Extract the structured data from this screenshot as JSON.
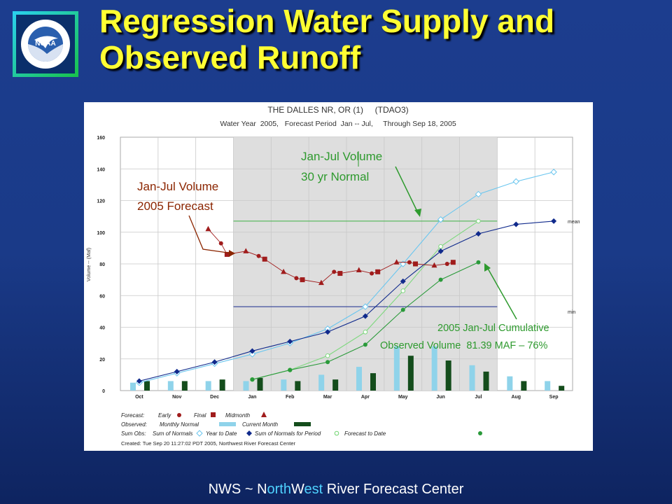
{
  "slide": {
    "title": "Regression Water Supply and Observed Runoff",
    "logo_text": "NOAA",
    "footer": {
      "pre": "NWS ~ ",
      "n": "N",
      "orth": "orth",
      "w": "W",
      "est": "est ",
      "rest": "River Forecast Center"
    }
  },
  "annotations": {
    "forecast": {
      "line1": "Jan-Jul Volume",
      "line2": "2005 Forecast",
      "color": "#8b2500"
    },
    "normal": {
      "line1": "Jan-Jul Volume",
      "line2": "30 yr Normal",
      "color": "#2e9a2e"
    },
    "observed": {
      "line1": "2005 Jan-Jul Cumulative",
      "line2": "Observed Volume  81.39 MAF – 76%",
      "color": "#2e9a2e"
    }
  },
  "chart_data": {
    "type": "line",
    "title": "THE DALLES NR, OR (1)     (TDAO3)",
    "subtitle": "Water Year  2005,   Forecast Period  Jan -- Jul,     Through Sep 18, 2005",
    "ylabel": "Volume -- (Maf)",
    "ylim": [
      0,
      160
    ],
    "yticks": [
      "0",
      "20",
      "40",
      "60",
      "80",
      "100",
      "120",
      "140",
      "160"
    ],
    "months": [
      "Oct",
      "Nov",
      "Dec",
      "Jan",
      "Feb",
      "Mar",
      "Apr",
      "May",
      "Jun",
      "Jul",
      "Aug",
      "Sep"
    ],
    "forecast_period": [
      3,
      10
    ],
    "mean_line": {
      "label": "mean",
      "value": 107
    },
    "min_line": {
      "label": "min",
      "value": 53
    },
    "series": {
      "sum_normals": [
        [
          0.5,
          5
        ],
        [
          1.5,
          11
        ],
        [
          2.5,
          17
        ],
        [
          3.5,
          23
        ],
        [
          4.5,
          30
        ],
        [
          5.5,
          39
        ],
        [
          6.5,
          53
        ],
        [
          7.5,
          80
        ],
        [
          8.5,
          108
        ],
        [
          9.5,
          124
        ],
        [
          10.5,
          132
        ],
        [
          11.5,
          138
        ]
      ],
      "year_to_date": [
        [
          0.5,
          6
        ],
        [
          1.5,
          12
        ],
        [
          2.5,
          18
        ],
        [
          3.5,
          25
        ],
        [
          4.5,
          31
        ],
        [
          5.5,
          37
        ],
        [
          6.5,
          47
        ],
        [
          7.5,
          69
        ],
        [
          8.5,
          88
        ],
        [
          9.5,
          99
        ],
        [
          10.5,
          105
        ],
        [
          11.5,
          107
        ]
      ],
      "normals_for_period": [
        [
          3.5,
          7
        ],
        [
          4.5,
          13
        ],
        [
          5.5,
          22
        ],
        [
          6.5,
          37
        ],
        [
          7.5,
          63
        ],
        [
          8.5,
          91
        ],
        [
          9.5,
          107
        ]
      ],
      "forecast_to_date": [
        [
          3.5,
          7
        ],
        [
          4.5,
          13
        ],
        [
          5.5,
          18
        ],
        [
          6.5,
          29
        ],
        [
          7.5,
          51
        ],
        [
          8.5,
          70
        ],
        [
          9.5,
          81
        ]
      ],
      "forecast": [
        {
          "x": 2.33,
          "y": 102,
          "m": "mid"
        },
        {
          "x": 2.67,
          "y": 93,
          "m": "early"
        },
        {
          "x": 2.83,
          "y": 86,
          "m": "final"
        },
        {
          "x": 3.33,
          "y": 88,
          "m": "mid"
        },
        {
          "x": 3.67,
          "y": 85,
          "m": "early"
        },
        {
          "x": 3.83,
          "y": 83,
          "m": "final"
        },
        {
          "x": 4.33,
          "y": 75,
          "m": "mid"
        },
        {
          "x": 4.67,
          "y": 71,
          "m": "early"
        },
        {
          "x": 4.83,
          "y": 70,
          "m": "final"
        },
        {
          "x": 5.33,
          "y": 68,
          "m": "mid"
        },
        {
          "x": 5.67,
          "y": 75,
          "m": "early"
        },
        {
          "x": 5.83,
          "y": 74,
          "m": "final"
        },
        {
          "x": 6.33,
          "y": 76,
          "m": "mid"
        },
        {
          "x": 6.67,
          "y": 74,
          "m": "early"
        },
        {
          "x": 6.83,
          "y": 75,
          "m": "final"
        },
        {
          "x": 7.33,
          "y": 81,
          "m": "mid"
        },
        {
          "x": 7.67,
          "y": 81,
          "m": "early"
        },
        {
          "x": 7.83,
          "y": 80,
          "m": "final"
        },
        {
          "x": 8.33,
          "y": 79,
          "m": "mid"
        },
        {
          "x": 8.67,
          "y": 80,
          "m": "early"
        },
        {
          "x": 8.83,
          "y": 81,
          "m": "final"
        }
      ],
      "monthly_normal": [
        5,
        6,
        6,
        6,
        7,
        10,
        15,
        28,
        28,
        16,
        9,
        6
      ],
      "current_month": [
        6,
        6,
        7,
        8,
        6,
        7,
        11,
        22,
        19,
        12,
        6,
        3
      ]
    },
    "legend": {
      "r1": {
        "label": "Forecast:",
        "early": "Early",
        "final": "Final",
        "mid": "Midmonth"
      },
      "r2": {
        "label": "Observed:",
        "normal": "Monthly Normal",
        "current": "Current Month"
      },
      "r3": {
        "label": "Sum Obs:",
        "sumnorm": "Sum of Normals",
        "ytd": "Year to Date",
        "period": "Sum of Normals for Period",
        "ftd": "Forecast to Date"
      }
    },
    "created": "Created: Tue Sep 20 11:27:02 PDT 2005, Northwest River Forecast Center"
  }
}
